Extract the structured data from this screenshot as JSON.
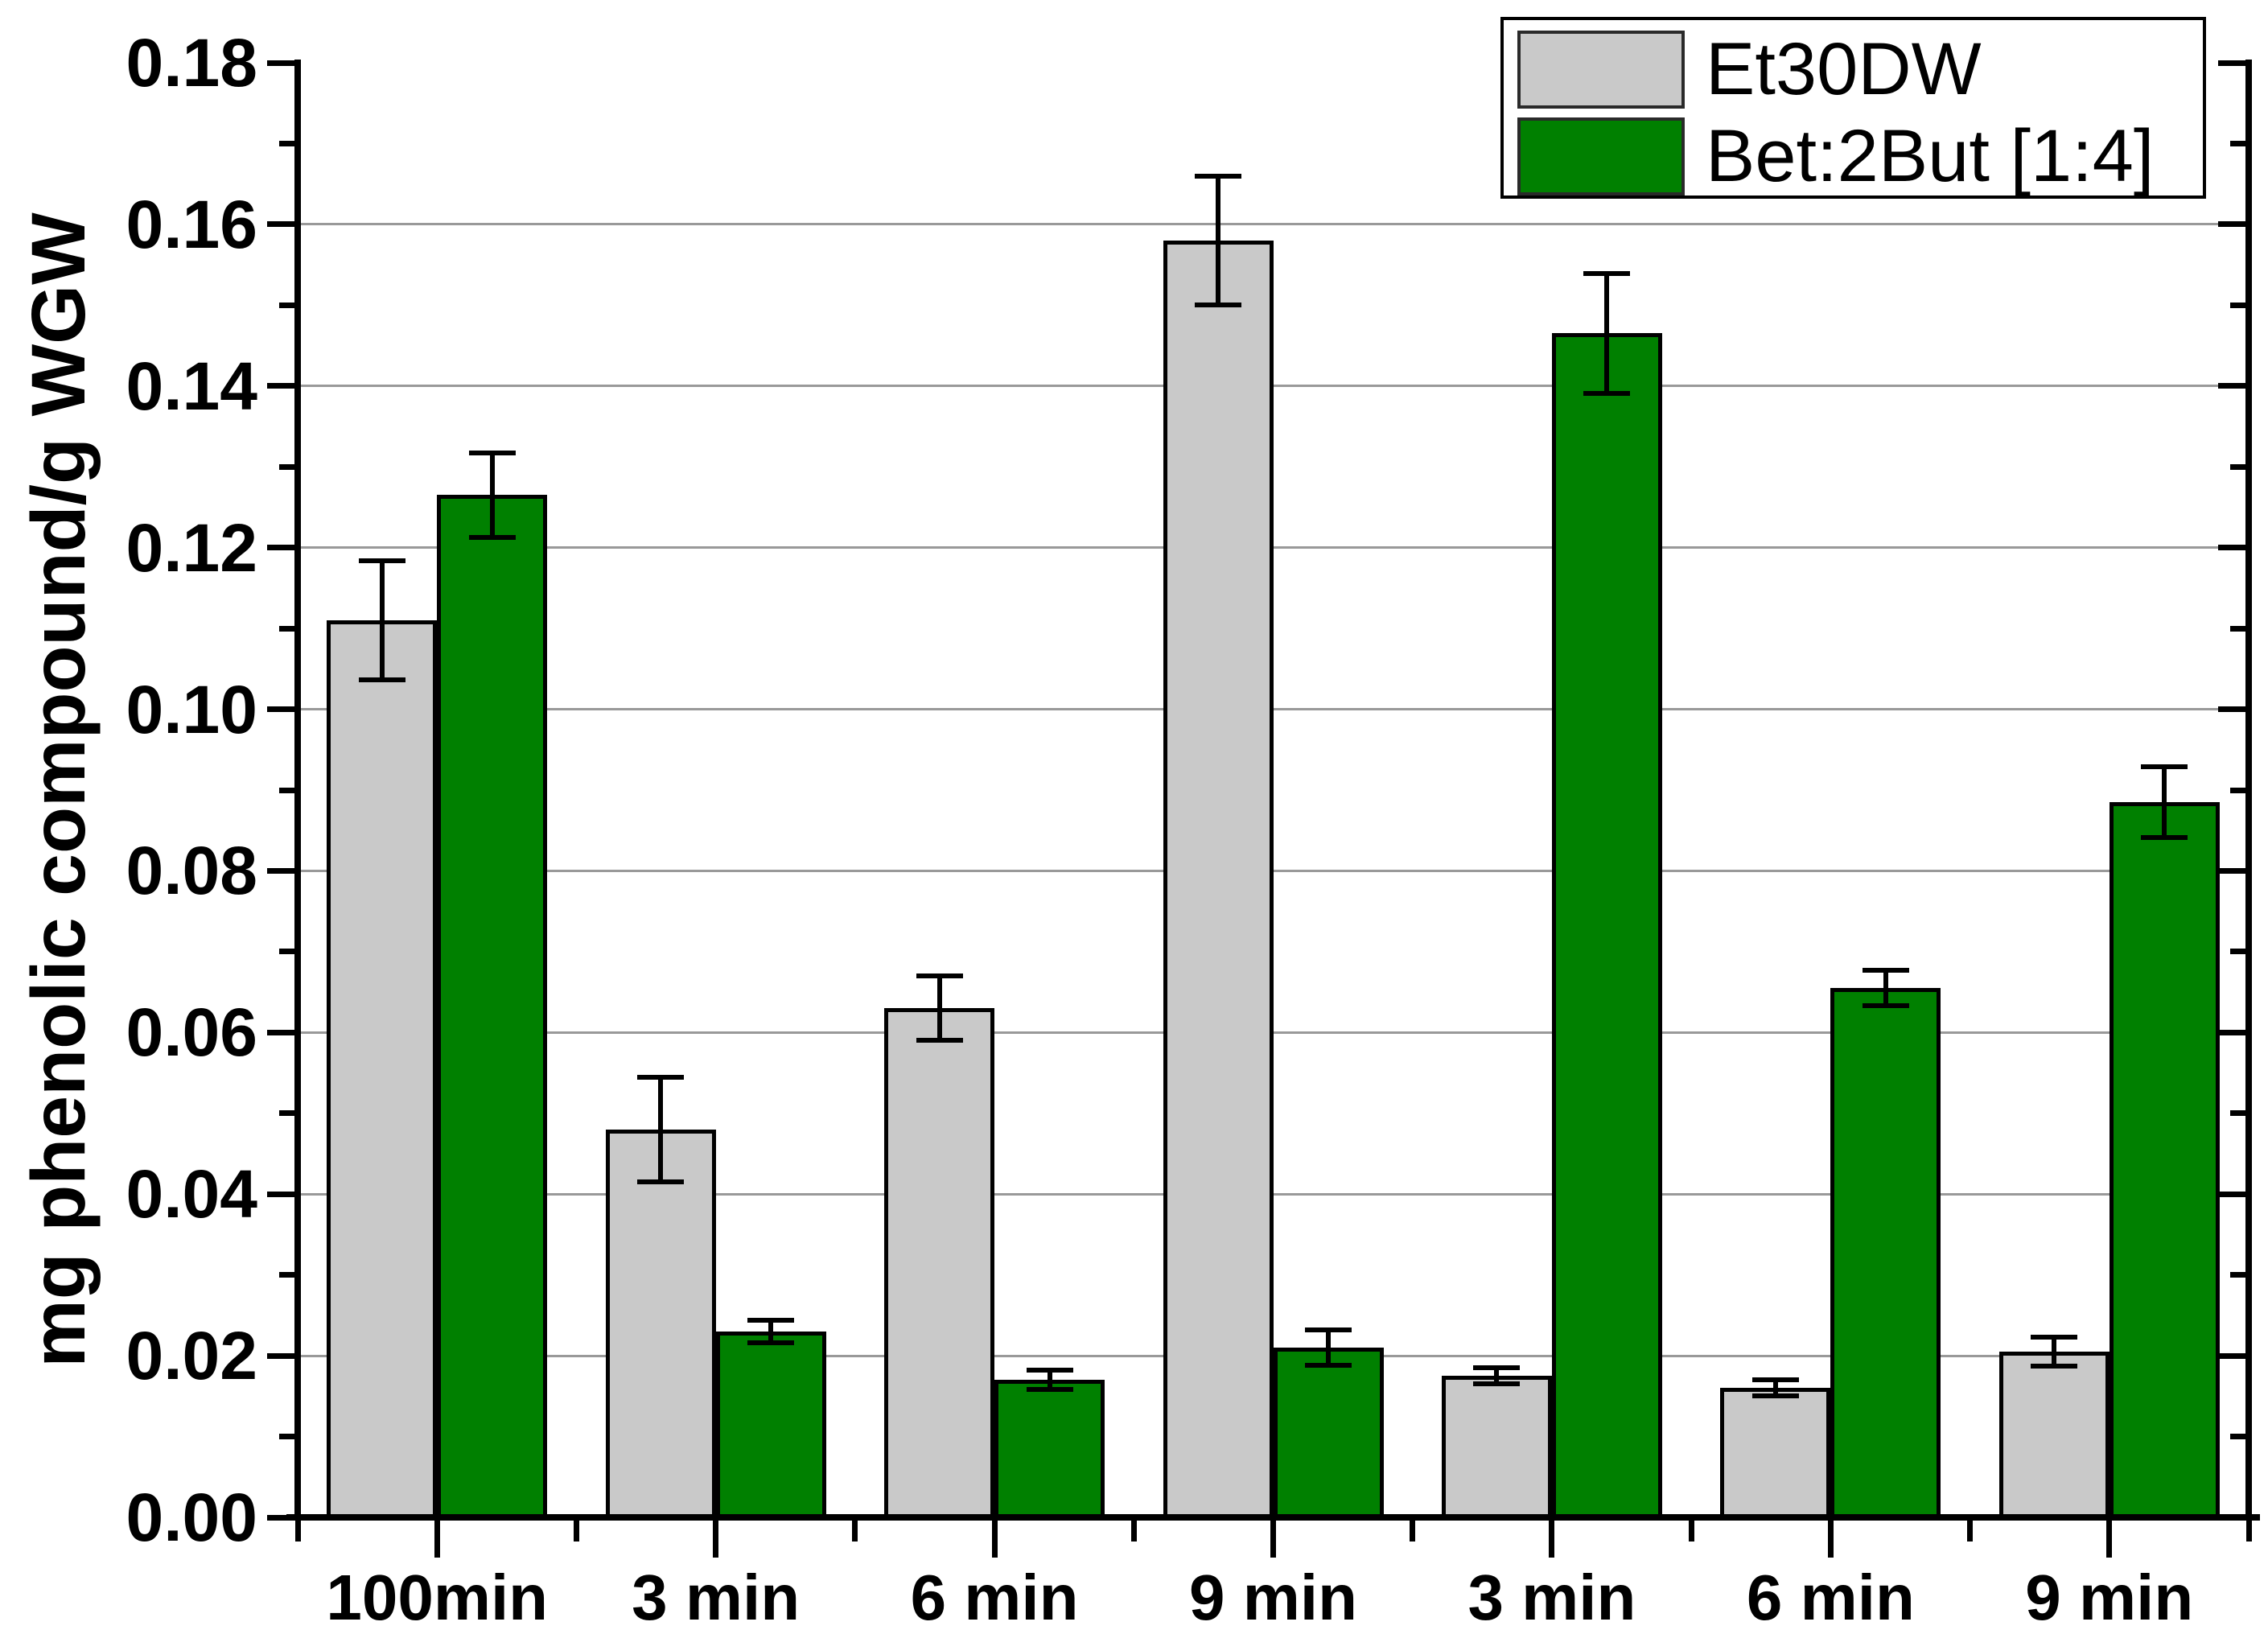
{
  "chart_data": {
    "type": "bar",
    "title": "",
    "xlabel": "",
    "ylabel": "mg phenolic compound/g WGW",
    "ylim": [
      0,
      0.18
    ],
    "ytick_major_step": 0.02,
    "ytick_minor_step": 0.01,
    "ytick_labels": [
      "0.00",
      "0.02",
      "0.04",
      "0.06",
      "0.08",
      "0.10",
      "0.12",
      "0.14",
      "0.16",
      "0.18"
    ],
    "grid": "horizontal-major",
    "legend_position": "top-right",
    "categories": [
      "100min",
      "3 min",
      "6 min",
      "9 min",
      "3 min",
      "6 min",
      "9 min"
    ],
    "series": [
      {
        "name": "Et30DW",
        "color": "#c9c9c9",
        "values": [
          0.111,
          0.048,
          0.063,
          0.158,
          0.0175,
          0.016,
          0.0205
        ],
        "errors": [
          0.0074,
          0.0065,
          0.004,
          0.008,
          0.001,
          0.001,
          0.0018
        ]
      },
      {
        "name": "Bet:2But [1:4]",
        "color": "#008000",
        "values": [
          0.1265,
          0.023,
          0.017,
          0.021,
          0.1465,
          0.0655,
          0.0885
        ],
        "errors": [
          0.0052,
          0.0014,
          0.0012,
          0.0022,
          0.0074,
          0.0022,
          0.0044
        ]
      }
    ],
    "colors": {
      "background": "#ffffff",
      "axis": "#000000",
      "gridline": "#999999",
      "bar_border": "#000000",
      "error_bar": "#000000"
    }
  }
}
